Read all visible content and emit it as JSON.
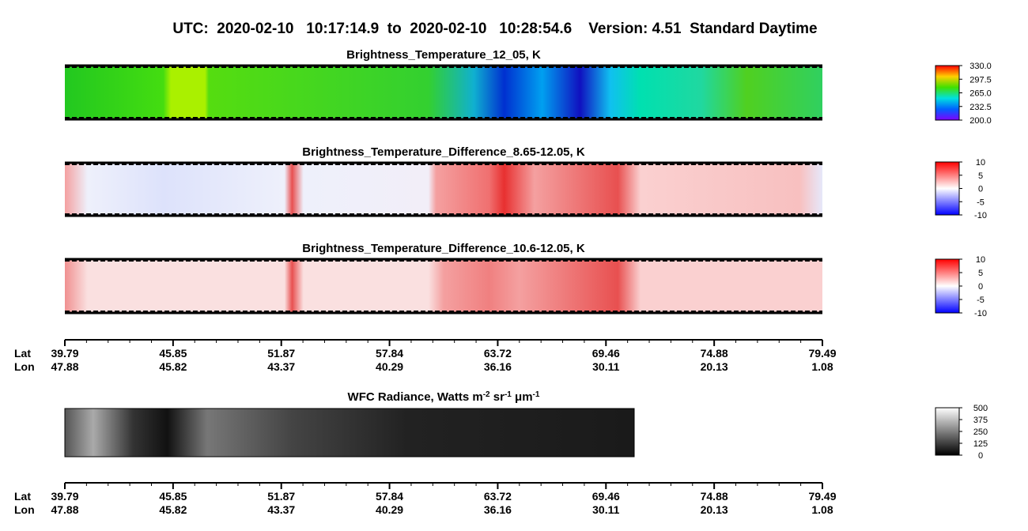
{
  "header": {
    "title": "UTC:  2020-02-10   10:17:14.9  to  2020-02-10   10:28:54.6    Version: 4.51  Standard Daytime"
  },
  "panels": [
    {
      "title": "Brightness_Temperature_12_05, K",
      "colorbar": [
        "330.0",
        "297.5",
        "265.0",
        "232.5",
        "200.0"
      ]
    },
    {
      "title": "Brightness_Temperature_Difference_8.65-12.05, K",
      "colorbar": [
        "10",
        "5",
        "0",
        "-5",
        "-10"
      ]
    },
    {
      "title": "Brightness_Temperature_Difference_10.6-12.05, K",
      "colorbar": [
        "10",
        "5",
        "0",
        "-5",
        "-10"
      ]
    }
  ],
  "axis": {
    "lat_label": "Lat",
    "lon_label": "Lon",
    "lat": [
      "39.79",
      "45.85",
      "51.87",
      "57.84",
      "63.72",
      "69.46",
      "74.88",
      "79.49"
    ],
    "lon": [
      "47.88",
      "45.82",
      "43.37",
      "40.29",
      "36.16",
      "30.11",
      "20.13",
      "1.08"
    ]
  },
  "wfc": {
    "title_parts": [
      "WFC Radiance, Watts m",
      "-2",
      " sr",
      "-1",
      " μm",
      "-1"
    ],
    "colorbar": [
      "500",
      "375",
      "250",
      "125",
      "0"
    ]
  }
}
